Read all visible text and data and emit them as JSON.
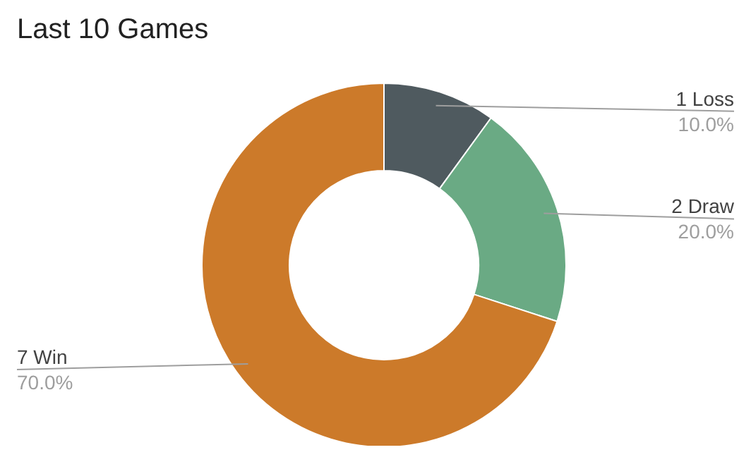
{
  "chart_data": {
    "type": "donut",
    "title": "Last 10 Games",
    "categories": [
      "1 Loss",
      "2 Draw",
      "7 Win"
    ],
    "values": [
      10,
      20,
      70
    ],
    "colors": [
      "#4f5a5f",
      "#6aaa84",
      "#cc7a2a"
    ],
    "value_labels": [
      "10.0%",
      "20.0%",
      "70.0%"
    ]
  }
}
